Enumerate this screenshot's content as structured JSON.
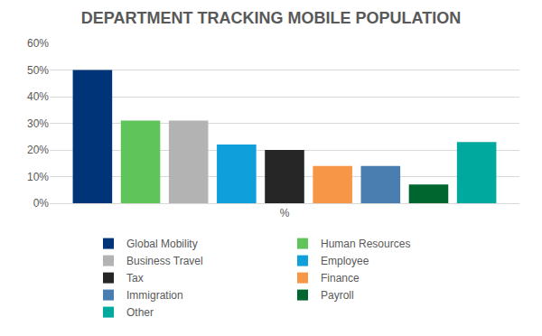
{
  "chart_data": {
    "type": "bar",
    "title": "DEPARTMENT TRACKING MOBILE POPULATION",
    "categories": [
      "%"
    ],
    "series": [
      {
        "name": "Global Mobility",
        "color": "#003479",
        "values": [
          50
        ]
      },
      {
        "name": "Human Resources",
        "color": "#5fc55a",
        "values": [
          31
        ]
      },
      {
        "name": "Business Travel",
        "color": "#b3b3b3",
        "values": [
          31
        ]
      },
      {
        "name": "Employee",
        "color": "#0fa0dc",
        "values": [
          22
        ]
      },
      {
        "name": "Tax",
        "color": "#262626",
        "values": [
          20
        ]
      },
      {
        "name": "Finance",
        "color": "#f79646",
        "values": [
          14
        ]
      },
      {
        "name": "Immigration",
        "color": "#4a7eb0",
        "values": [
          14
        ]
      },
      {
        "name": "Payroll",
        "color": "#00662f",
        "values": [
          7
        ]
      },
      {
        "name": "Other",
        "color": "#00a99d",
        "values": [
          23
        ]
      }
    ],
    "ylim": [
      0,
      60
    ],
    "yticks": [
      {
        "value": 0,
        "label": "0%"
      },
      {
        "value": 10,
        "label": "10%"
      },
      {
        "value": 20,
        "label": "20%"
      },
      {
        "value": 30,
        "label": "30%"
      },
      {
        "value": 40,
        "label": "40%"
      },
      {
        "value": 50,
        "label": "50%"
      },
      {
        "value": 60,
        "label": "60%"
      }
    ],
    "grid": true,
    "legend": "bottom"
  }
}
